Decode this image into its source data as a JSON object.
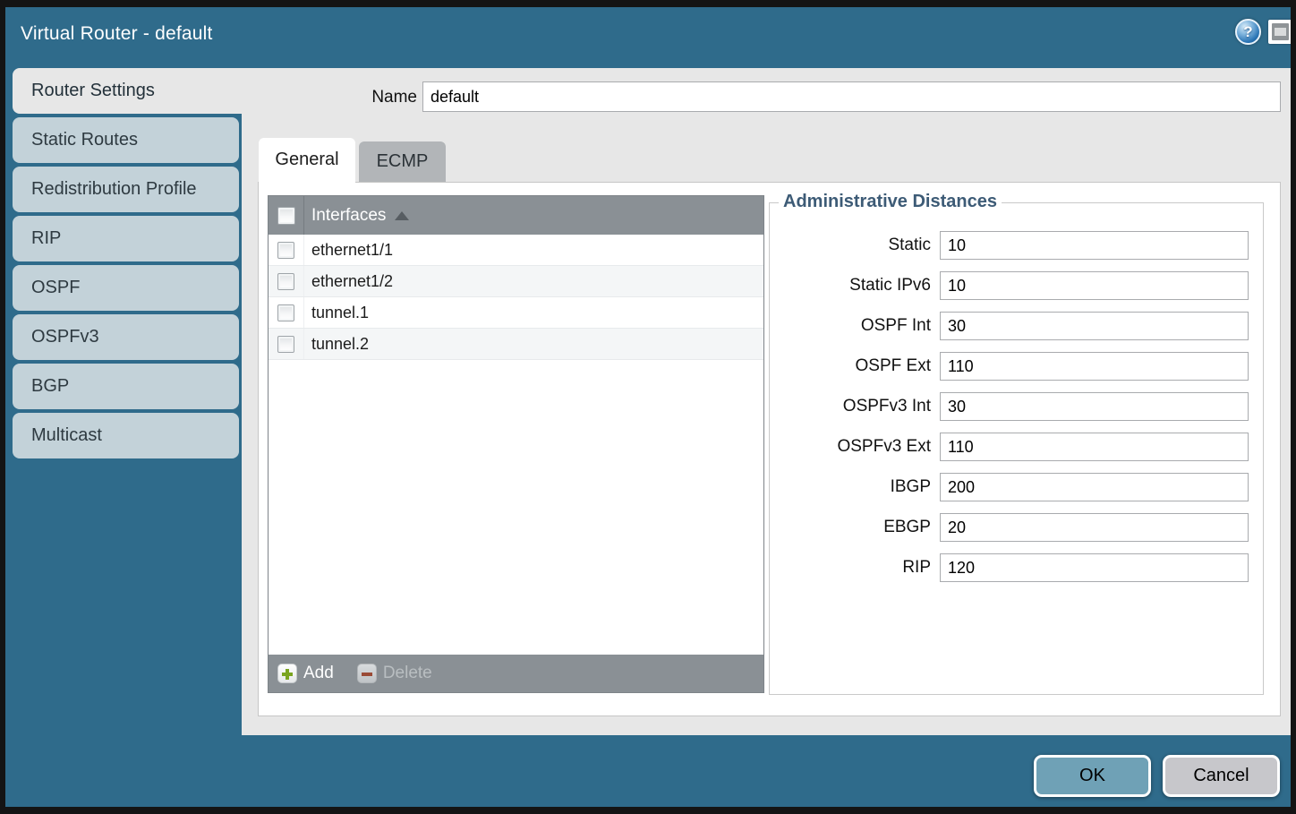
{
  "window": {
    "title": "Virtual Router - default",
    "help_icon_glyph": "?",
    "help_icon": "help-icon",
    "window_icon": "maximize-icon"
  },
  "form": {
    "name_label": "Name",
    "name_value": "default"
  },
  "sidebar": {
    "items": [
      {
        "label": "Router Settings",
        "active": true
      },
      {
        "label": "Static Routes",
        "active": false
      },
      {
        "label": "Redistribution Profile",
        "active": false
      },
      {
        "label": "RIP",
        "active": false
      },
      {
        "label": "OSPF",
        "active": false
      },
      {
        "label": "OSPFv3",
        "active": false
      },
      {
        "label": "BGP",
        "active": false
      },
      {
        "label": "Multicast",
        "active": false
      }
    ]
  },
  "tabs": {
    "general_label": "General",
    "ecmp_label": "ECMP"
  },
  "interfaces_table": {
    "header": "Interfaces",
    "sort_icon": "sort-ascending-icon",
    "rows": [
      {
        "label": "ethernet1/1",
        "checked": false
      },
      {
        "label": "ethernet1/2",
        "checked": false
      },
      {
        "label": "tunnel.1",
        "checked": false
      },
      {
        "label": "tunnel.2",
        "checked": false
      }
    ],
    "add_label": "Add",
    "delete_label": "Delete",
    "delete_enabled": false
  },
  "admin_distances": {
    "legend": "Administrative Distances",
    "fields": [
      {
        "label": "Static",
        "value": "10"
      },
      {
        "label": "Static IPv6",
        "value": "10"
      },
      {
        "label": "OSPF Int",
        "value": "30"
      },
      {
        "label": "OSPF Ext",
        "value": "110"
      },
      {
        "label": "OSPFv3 Int",
        "value": "30"
      },
      {
        "label": "OSPFv3 Ext",
        "value": "110"
      },
      {
        "label": "IBGP",
        "value": "200"
      },
      {
        "label": "EBGP",
        "value": "20"
      },
      {
        "label": "RIP",
        "value": "120"
      }
    ]
  },
  "footer": {
    "ok_label": "OK",
    "cancel_label": "Cancel"
  },
  "colors": {
    "teal": "#2F6B8B",
    "tabInactive": "#C3D2D9",
    "headerGray": "#8A9095",
    "green": "#7AA420",
    "red": "#9A4A36",
    "legendBlue": "#3D5B76",
    "okBlue": "#6FA1B6"
  }
}
